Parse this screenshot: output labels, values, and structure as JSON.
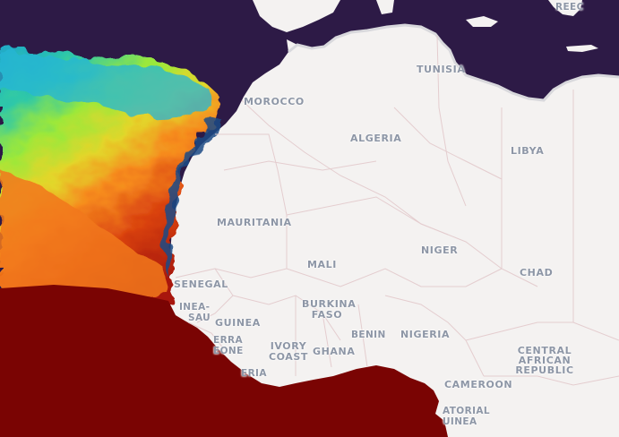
{
  "map": {
    "colors": {
      "land": "#f4f2f1",
      "sea_dark": "#2d1a46",
      "sea_hot": "#7a0403",
      "border": "#e3cfd0"
    },
    "labels": {
      "morocco": "MOROCCO",
      "tunisia": "TUNISIA",
      "algeria": "ALGERIA",
      "libya": "LIBYA",
      "mauritania": "MAURITANIA",
      "niger": "NIGER",
      "mali": "MALI",
      "chad": "CHAD",
      "senegal": "SENEGAL",
      "guinea_bissau_1": "INEA-",
      "guinea_bissau_2": "SAU",
      "guinea": "GUINEA",
      "sierra_leone_1": "ERRA",
      "sierra_leone_2": "EONE",
      "burkina_1": "BURKINA",
      "burkina_2": "FASO",
      "benin": "BENIN",
      "nigeria": "NIGERIA",
      "ivory_coast_1": "IVORY",
      "ivory_coast_2": "COAST",
      "ghana": "GHANA",
      "liberia": "ERIA",
      "car_1": "CENTRAL",
      "car_2": "AFRICAN",
      "car_3": "REPUBLIC",
      "cameroon": "CAMEROON",
      "eq_guinea_1": "ATORIAL",
      "eq_guinea_2": "UINEA",
      "greece": "REEC"
    }
  }
}
